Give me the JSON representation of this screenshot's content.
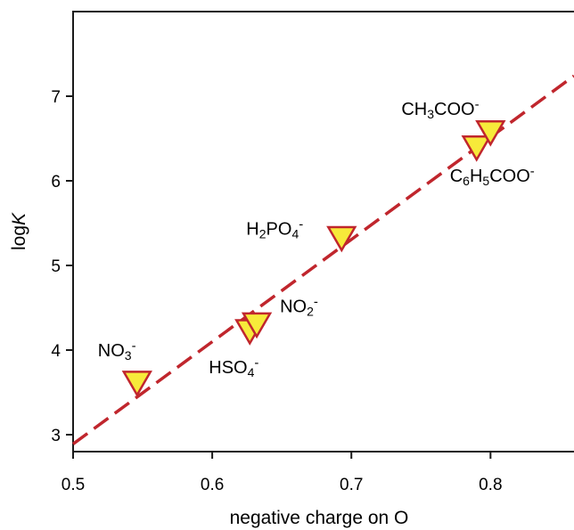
{
  "chart_data": {
    "type": "scatter",
    "xlabel": "negative charge on O",
    "ylabel_prefix": "log",
    "ylabel_italic": "K",
    "xlim": [
      0.5,
      0.86
    ],
    "ylim": [
      2.8,
      8.0
    ],
    "xticks": [
      {
        "value": 0.5,
        "label": "0.5"
      },
      {
        "value": 0.6,
        "label": "0.6"
      },
      {
        "value": 0.7,
        "label": "0.7"
      },
      {
        "value": 0.8,
        "label": "0.8"
      }
    ],
    "yticks": [
      {
        "value": 3,
        "label": "3"
      },
      {
        "value": 4,
        "label": "4"
      },
      {
        "value": 5,
        "label": "5"
      },
      {
        "value": 6,
        "label": "6"
      },
      {
        "value": 7,
        "label": "7"
      }
    ],
    "points": [
      {
        "x": 0.546,
        "y": 3.62,
        "label_parts": [
          [
            "NO",
            ""
          ],
          [
            "3",
            "sub"
          ],
          [
            "-",
            "sup"
          ]
        ]
      },
      {
        "x": 0.627,
        "y": 4.23,
        "label_parts": [
          [
            "HSO",
            ""
          ],
          [
            "4",
            "sub"
          ],
          [
            "-",
            "sup"
          ]
        ]
      },
      {
        "x": 0.632,
        "y": 4.31,
        "label_parts": [
          [
            "NO",
            ""
          ],
          [
            "2",
            "sub"
          ],
          [
            "-",
            "sup"
          ]
        ]
      },
      {
        "x": 0.693,
        "y": 5.33,
        "label_parts": [
          [
            "H",
            ""
          ],
          [
            "2",
            "sub"
          ],
          [
            "PO",
            ""
          ],
          [
            "4",
            "sub"
          ],
          [
            "-",
            "sup"
          ]
        ]
      },
      {
        "x": 0.79,
        "y": 6.4,
        "label_parts": [
          [
            "C",
            ""
          ],
          [
            "6",
            "sub"
          ],
          [
            "H",
            ""
          ],
          [
            "5",
            "sub"
          ],
          [
            "COO",
            ""
          ],
          [
            "-",
            "sup"
          ]
        ]
      },
      {
        "x": 0.8,
        "y": 6.58,
        "label_parts": [
          [
            "CH",
            ""
          ],
          [
            "3",
            "sub"
          ],
          [
            "COO",
            ""
          ],
          [
            "-",
            "sup"
          ]
        ]
      }
    ],
    "fit_line": {
      "x": [
        0.5,
        0.86
      ],
      "y": [
        2.89,
        7.24
      ]
    },
    "colors": {
      "marker_fill": "#f7ea3a",
      "marker_edge": "#c0262d",
      "fit_line": "#c0262d",
      "axis": "#1a1a1a"
    }
  }
}
